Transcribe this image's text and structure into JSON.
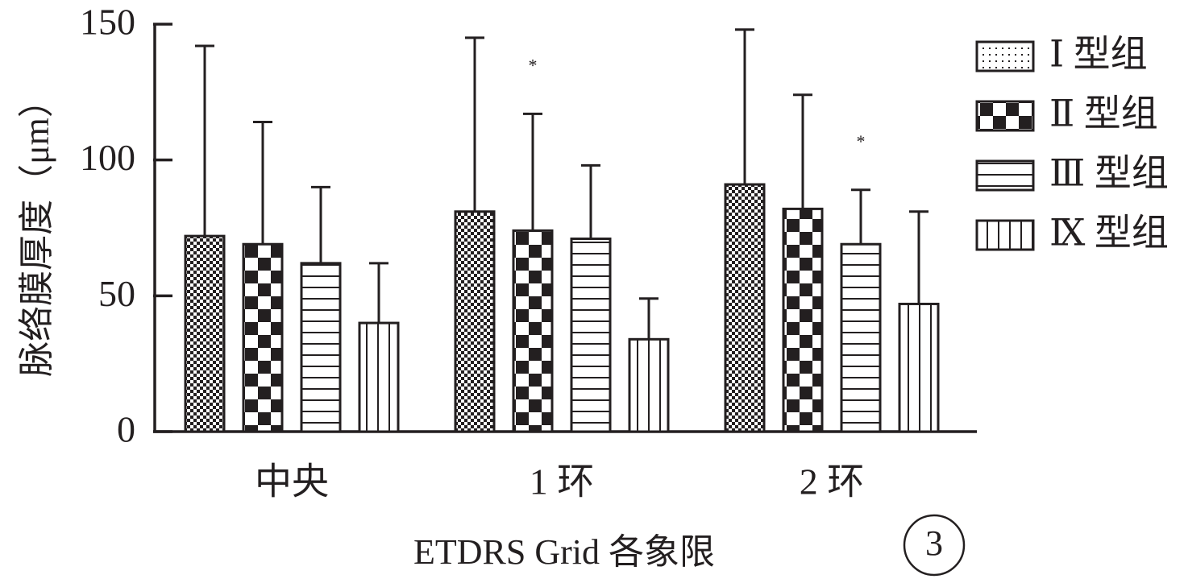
{
  "chart_data": {
    "type": "bar",
    "ylabel": "脉络膜厚度（μm）",
    "xlabel": "ETDRS Grid 各象限",
    "ylim": [
      0,
      150
    ],
    "yticks": [
      0,
      50,
      100,
      150
    ],
    "grid": false,
    "legend_position": "top-right",
    "categories": [
      "中央",
      "1 环",
      "2 环"
    ],
    "series": [
      {
        "name": "Ⅰ 型组",
        "pattern": "fine-checker",
        "values": [
          72,
          81,
          91
        ],
        "errors": [
          70,
          64,
          57
        ]
      },
      {
        "name": "Ⅱ 型组",
        "pattern": "coarse-checker",
        "values": [
          69,
          74,
          82
        ],
        "errors": [
          45,
          43,
          42
        ]
      },
      {
        "name": "Ⅲ 型组",
        "pattern": "horizontal-lines",
        "values": [
          62,
          71,
          69
        ],
        "errors": [
          28,
          27,
          20
        ]
      },
      {
        "name": "Ⅸ 型组",
        "pattern": "vertical-lines",
        "values": [
          40,
          34,
          47
        ],
        "errors": [
          22,
          15,
          34
        ]
      }
    ],
    "annotations": [
      {
        "text": "*",
        "category": "1 环",
        "series": "Ⅱ 型组"
      },
      {
        "text": "*",
        "category": "2 环",
        "series": "Ⅲ 型组"
      }
    ],
    "panel_label": "3"
  },
  "colors": {
    "ink": "#231f20",
    "background": "#ffffff"
  }
}
